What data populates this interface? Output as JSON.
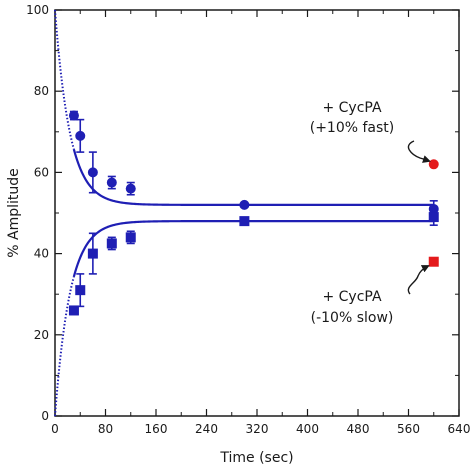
{
  "chart_data": {
    "type": "scatter",
    "xlabel": "Time (sec)",
    "ylabel": "% Amplitude",
    "xlim": [
      0,
      640
    ],
    "ylim": [
      0,
      100
    ],
    "xticks": [
      "0",
      "80",
      "160",
      "240",
      "320",
      "400",
      "480",
      "560",
      "640"
    ],
    "yticks": [
      "0",
      "20",
      "40",
      "60",
      "80",
      "100"
    ],
    "grid": false,
    "series": [
      {
        "marker": "circle",
        "color": "#1f1fb4",
        "points": [
          {
            "x": 30,
            "y": 74,
            "err": 1
          },
          {
            "x": 40,
            "y": 69,
            "err": 4
          },
          {
            "x": 60,
            "y": 60,
            "err": 5
          },
          {
            "x": 90,
            "y": 57.5,
            "err": 1.5
          },
          {
            "x": 120,
            "y": 56,
            "err": 1.5
          },
          {
            "x": 300,
            "y": 52,
            "err": 0.5
          },
          {
            "x": 600,
            "y": 51,
            "err": 2
          }
        ],
        "fit": {
          "start": 100,
          "plateau": 52,
          "k": 0.042
        }
      },
      {
        "marker": "square",
        "color": "#1f1fb4",
        "points": [
          {
            "x": 30,
            "y": 26,
            "err": 1
          },
          {
            "x": 40,
            "y": 31,
            "err": 4
          },
          {
            "x": 60,
            "y": 40,
            "err": 5
          },
          {
            "x": 90,
            "y": 42.5,
            "err": 1.5
          },
          {
            "x": 120,
            "y": 44,
            "err": 1.5
          },
          {
            "x": 300,
            "y": 48,
            "err": 0.5
          },
          {
            "x": 600,
            "y": 49,
            "err": 2
          }
        ],
        "fit": {
          "start": 0,
          "plateau": 48,
          "k": 0.042
        }
      },
      {
        "marker": "circle",
        "color": "#e41a1c",
        "points": [
          {
            "x": 600,
            "y": 62
          }
        ]
      },
      {
        "marker": "square",
        "color": "#e41a1c",
        "points": [
          {
            "x": 600,
            "y": 38
          }
        ]
      }
    ],
    "annotations": [
      {
        "line1": "+ CycPA",
        "line2": "(+10% fast)",
        "target": {
          "x": 600,
          "y": 62
        }
      },
      {
        "line1": "+ CycPA",
        "line2": "(-10% slow)",
        "target": {
          "x": 600,
          "y": 38
        }
      }
    ]
  }
}
